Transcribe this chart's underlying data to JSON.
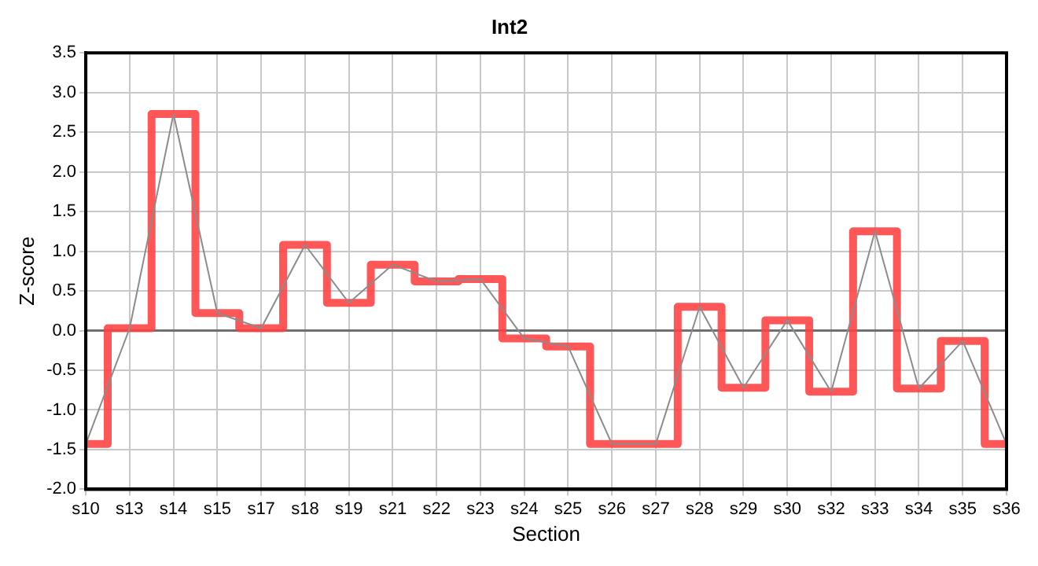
{
  "chart_data": {
    "type": "line",
    "title": "Int2",
    "xlabel": "Section",
    "ylabel": "Z-score",
    "categories": [
      "s10",
      "s13",
      "s14",
      "s15",
      "s17",
      "s18",
      "s19",
      "s21",
      "s22",
      "s23",
      "s24",
      "s25",
      "s26",
      "s27",
      "s28",
      "s29",
      "s30",
      "s32",
      "s33",
      "s34",
      "s35",
      "s36"
    ],
    "series": [
      {
        "type": "line",
        "color": "#8c8c8c",
        "values": [
          -1.43,
          0.03,
          2.73,
          0.22,
          0.03,
          1.08,
          0.35,
          0.83,
          0.62,
          0.65,
          -0.1,
          -0.2,
          -1.43,
          -1.43,
          0.3,
          -0.72,
          0.13,
          -0.77,
          1.25,
          -0.73,
          -0.13,
          -1.43
        ]
      },
      {
        "type": "step",
        "color": "#ff4040",
        "values": [
          -1.43,
          0.03,
          2.73,
          0.22,
          0.03,
          1.08,
          0.35,
          0.83,
          0.62,
          0.65,
          -0.1,
          -0.2,
          -1.43,
          -1.43,
          0.3,
          -0.72,
          0.13,
          -0.77,
          1.25,
          -0.73,
          -0.13,
          -1.43
        ]
      }
    ],
    "ylim": [
      -2,
      3.5
    ],
    "yticks": [
      {
        "value": -2,
        "label": "-2.0"
      },
      {
        "value": -1.5,
        "label": "-1.5"
      },
      {
        "value": -1,
        "label": "-1.0"
      },
      {
        "value": -0.5,
        "label": "-0.5"
      },
      {
        "value": 0,
        "label": "0.0"
      },
      {
        "value": 0.5,
        "label": "0.5"
      },
      {
        "value": 1,
        "label": "1.0"
      },
      {
        "value": 1.5,
        "label": "1.5"
      },
      {
        "value": 2,
        "label": "2.0"
      },
      {
        "value": 2.5,
        "label": "2.5"
      },
      {
        "value": 3,
        "label": "3.0"
      },
      {
        "value": 3.5,
        "label": "3.5"
      }
    ],
    "ref_lines": [
      {
        "axis": "y",
        "value": 0,
        "color": "#707070"
      }
    ],
    "grid": true,
    "legend": false,
    "marker": "none",
    "line_style": "solid"
  }
}
